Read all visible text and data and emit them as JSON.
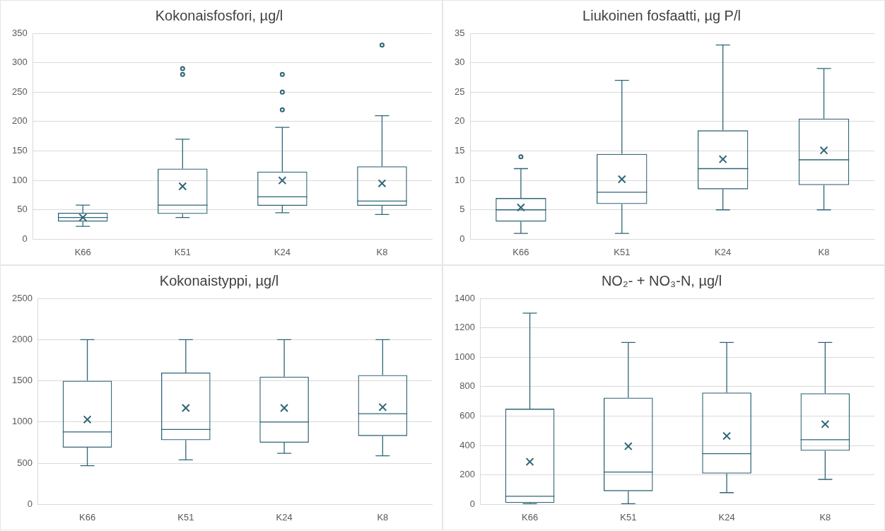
{
  "chart_data": [
    {
      "type": "box",
      "title": "Kokonaisfosfori, µg/l",
      "categories": [
        "K66",
        "K51",
        "K24",
        "K8"
      ],
      "color": "#2f6577",
      "grid": "y",
      "ylim": [
        0,
        350
      ],
      "yticks": [
        0,
        50,
        100,
        150,
        200,
        250,
        300,
        350
      ],
      "boxes": [
        {
          "low": 22,
          "q1": 30,
          "median": 37,
          "q3": 45,
          "high": 58,
          "mean": 37
        },
        {
          "low": 37,
          "q1": 43,
          "median": 58,
          "q3": 120,
          "high": 170,
          "mean": 90,
          "outliers": [
            280,
            290
          ]
        },
        {
          "low": 45,
          "q1": 57,
          "median": 72,
          "q3": 115,
          "high": 190,
          "mean": 100,
          "outliers": [
            220,
            250,
            280
          ]
        },
        {
          "low": 42,
          "q1": 57,
          "median": 65,
          "q3": 124,
          "high": 210,
          "mean": 95,
          "outliers": [
            330
          ]
        }
      ]
    },
    {
      "type": "box",
      "title": "Liukoinen fosfaatti, µg P/l",
      "categories": [
        "K66",
        "K51",
        "K24",
        "K8"
      ],
      "color": "#2f6577",
      "grid": "y",
      "ylim": [
        0,
        35
      ],
      "yticks": [
        0,
        5,
        10,
        15,
        20,
        25,
        30,
        35
      ],
      "boxes": [
        {
          "low": 1,
          "q1": 3,
          "median": 5,
          "q3": 7,
          "high": 12,
          "mean": 5.4,
          "outliers": [
            14
          ]
        },
        {
          "low": 1,
          "q1": 6,
          "median": 8,
          "q3": 14.5,
          "high": 27,
          "mean": 10.2
        },
        {
          "low": 5,
          "q1": 8.5,
          "median": 12,
          "q3": 18.5,
          "high": 33,
          "mean": 13.6
        },
        {
          "low": 5,
          "q1": 9.2,
          "median": 13.5,
          "q3": 20.5,
          "high": 29,
          "mean": 15.1
        }
      ]
    },
    {
      "type": "box",
      "title": "Kokonaistyppi, µg/l",
      "categories": [
        "K66",
        "K51",
        "K24",
        "K8"
      ],
      "color": "#2f6577",
      "grid": "y",
      "ylim": [
        0,
        2500
      ],
      "yticks": [
        0,
        500,
        1000,
        1500,
        2000,
        2500
      ],
      "boxes": [
        {
          "low": 470,
          "q1": 690,
          "median": 880,
          "q3": 1500,
          "high": 2000,
          "mean": 1030
        },
        {
          "low": 540,
          "q1": 780,
          "median": 910,
          "q3": 1600,
          "high": 2000,
          "mean": 1170
        },
        {
          "low": 620,
          "q1": 750,
          "median": 1000,
          "q3": 1550,
          "high": 2000,
          "mean": 1170
        },
        {
          "low": 590,
          "q1": 830,
          "median": 1100,
          "q3": 1570,
          "high": 2000,
          "mean": 1180
        }
      ]
    },
    {
      "type": "box",
      "title": "NO₂- + NO₃-N, µg/l",
      "categories": [
        "K66",
        "K51",
        "K24",
        "K8"
      ],
      "color": "#2f6577",
      "grid": "y",
      "ylim": [
        0,
        1400
      ],
      "yticks": [
        0,
        200,
        400,
        600,
        800,
        1000,
        1200,
        1400
      ],
      "boxes": [
        {
          "low": 5,
          "q1": 10,
          "median": 55,
          "q3": 650,
          "high": 1300,
          "mean": 290
        },
        {
          "low": 5,
          "q1": 90,
          "median": 220,
          "q3": 725,
          "high": 1100,
          "mean": 395
        },
        {
          "low": 80,
          "q1": 210,
          "median": 345,
          "q3": 760,
          "high": 1100,
          "mean": 465
        },
        {
          "low": 170,
          "q1": 365,
          "median": 440,
          "q3": 755,
          "high": 1100,
          "mean": 545
        }
      ]
    }
  ]
}
